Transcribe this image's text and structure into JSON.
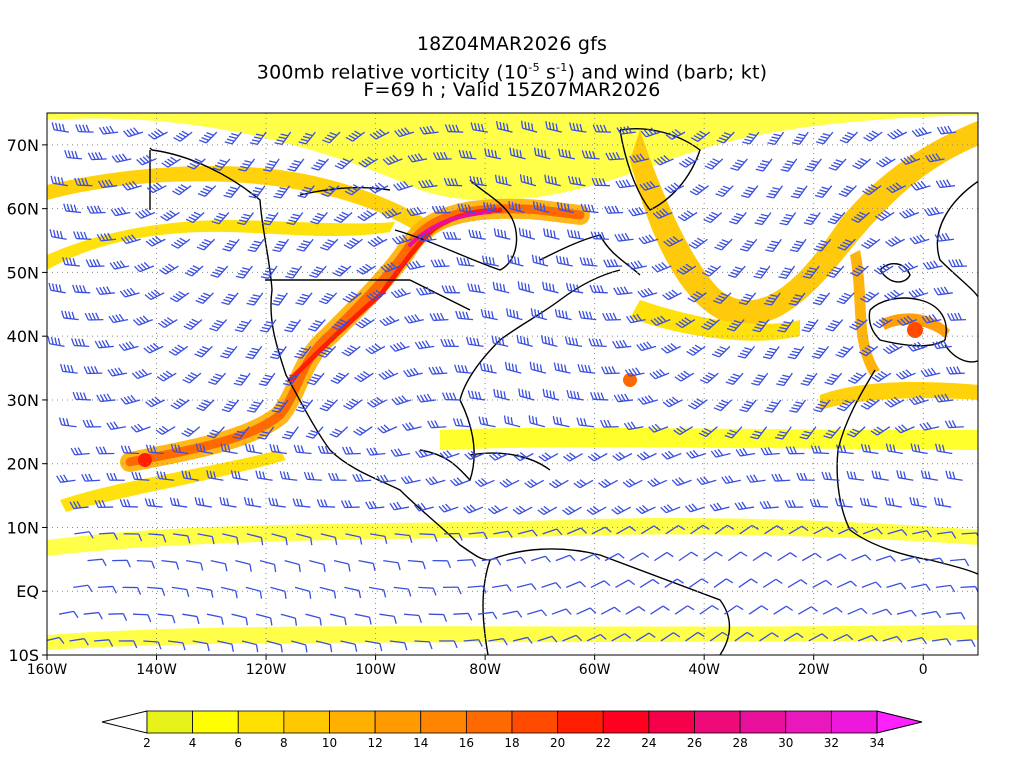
{
  "header": {
    "line1": "18Z04MAR2026 gfs",
    "line2_pre": "300mb relative vorticity (10",
    "line2_exp1": "-5",
    "line2_mid": " s",
    "line2_exp2": "-1",
    "line2_post": ") and wind (barb; kt)",
    "line3": "F=69 h ; Valid 15Z07MAR2026"
  },
  "map": {
    "lon_range": [
      -160,
      10
    ],
    "lat_range": [
      -10,
      75
    ],
    "lat_ticks": [
      {
        "lat": 70,
        "label": "70N"
      },
      {
        "lat": 60,
        "label": "60N"
      },
      {
        "lat": 50,
        "label": "50N"
      },
      {
        "lat": 40,
        "label": "40N"
      },
      {
        "lat": 30,
        "label": "30N"
      },
      {
        "lat": 20,
        "label": "20N"
      },
      {
        "lat": 10,
        "label": "10N"
      },
      {
        "lat": 0,
        "label": "EQ"
      },
      {
        "lat": -10,
        "label": "10S"
      }
    ],
    "lon_ticks": [
      {
        "lon": -160,
        "label": "160W"
      },
      {
        "lon": -140,
        "label": "140W"
      },
      {
        "lon": -120,
        "label": "120W"
      },
      {
        "lon": -100,
        "label": "100W"
      },
      {
        "lon": -80,
        "label": "80W"
      },
      {
        "lon": -60,
        "label": "60W"
      },
      {
        "lon": -40,
        "label": "40W"
      },
      {
        "lon": -20,
        "label": "20W"
      },
      {
        "lon": 0,
        "label": "0"
      }
    ],
    "gridlines": "dotted",
    "barb_color": "#3a4fe0"
  },
  "colorbar": {
    "levels": [
      "2",
      "4",
      "6",
      "8",
      "10",
      "12",
      "14",
      "16",
      "18",
      "20",
      "22",
      "24",
      "26",
      "28",
      "30",
      "32",
      "34"
    ],
    "colors": [
      "#e6f21a",
      "#ffff00",
      "#ffe000",
      "#ffc800",
      "#ffb000",
      "#ff9a00",
      "#ff8400",
      "#ff6a00",
      "#ff4a00",
      "#ff1e00",
      "#ff0020",
      "#f5004a",
      "#ee0a78",
      "#e8109a",
      "#e818bc",
      "#ee18dc"
    ],
    "below_color": "#ffffff",
    "above_color": "#ff20ff"
  }
}
